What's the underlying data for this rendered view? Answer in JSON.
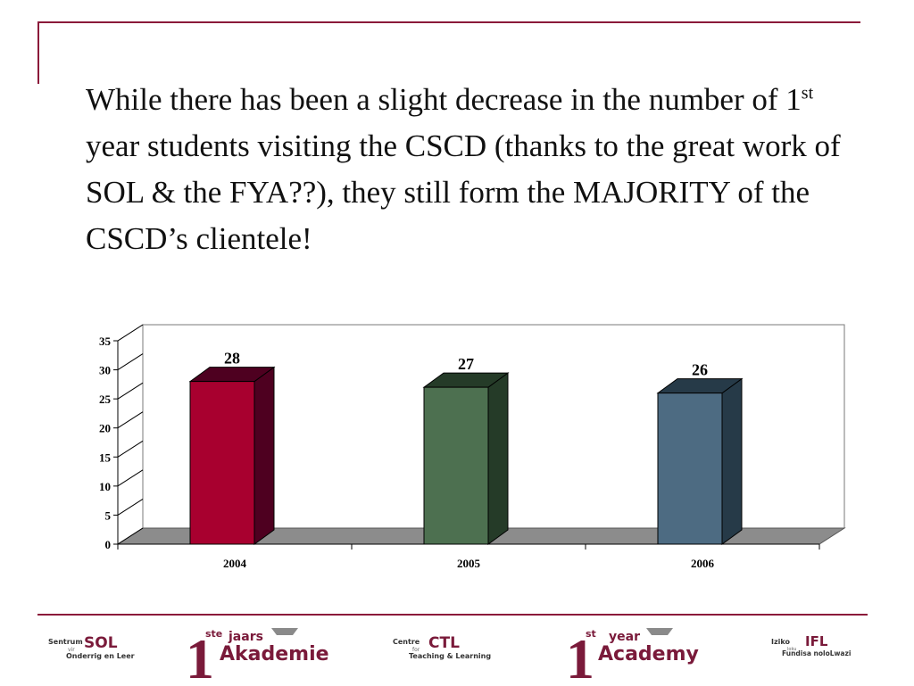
{
  "slide": {
    "heading_before": "While there has been a slight decrease in the number of 1",
    "heading_sup": "st",
    "heading_after": " year students visiting the CSCD (thanks to the great work of SOL & the FYA??), they still form the MAJORITY of the CSCD’s clientele!"
  },
  "chart_data": {
    "type": "bar",
    "categories": [
      "2004",
      "2005",
      "2006"
    ],
    "values": [
      28,
      27,
      26
    ],
    "data_labels": [
      "28",
      "27",
      "26"
    ],
    "title": "",
    "xlabel": "",
    "ylabel": "",
    "ylim": [
      0,
      35
    ],
    "yticks": [
      "0",
      "5",
      "10",
      "15",
      "20",
      "25",
      "30",
      "35"
    ],
    "grid": false,
    "legend": "none",
    "style": "3d",
    "colors": [
      "#a8002f",
      "#4d7050",
      "#4d6b82"
    ],
    "side_colors": [
      "#4e0020",
      "#253b28",
      "#263a48"
    ]
  },
  "footer": {
    "logos": [
      {
        "small": "Sentrum",
        "sub": "vir",
        "big": "SOL",
        "line2": "Onderrig en Leer"
      },
      {
        "numeral": "1",
        "sup": "ste",
        "top": "jaars",
        "word": "Akademie"
      },
      {
        "small": "Centre",
        "sub": "for",
        "big": "CTL",
        "line2": "Teaching & Learning"
      },
      {
        "numeral": "1",
        "sup": "st",
        "top": "year",
        "word": "Academy"
      },
      {
        "small": "Iziko",
        "sub": "loku",
        "big": "IFL",
        "line2": "Fundisa noloLwazi"
      }
    ]
  }
}
